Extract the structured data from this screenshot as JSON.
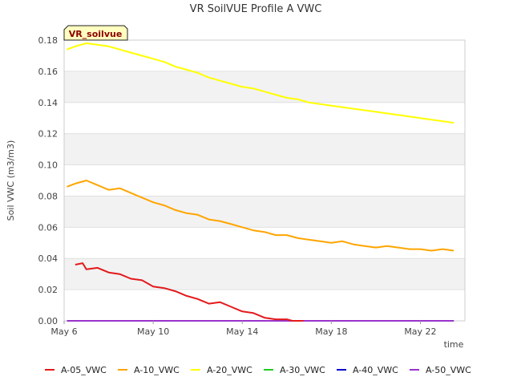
{
  "chart_data": {
    "type": "line",
    "title": "VR SoilVUE Profile A VWC",
    "badge": "VR_soilvue",
    "xlabel": "time",
    "ylabel": "Soil VWC (m3/m3)",
    "x_ticks": [
      "May 6",
      "May 10",
      "May 14",
      "May 18",
      "May 22"
    ],
    "y_ticks": [
      "0.00",
      "0.02",
      "0.04",
      "0.06",
      "0.08",
      "0.10",
      "0.12",
      "0.14",
      "0.16",
      "0.18"
    ],
    "xlim": [
      "2024-05-06",
      "2024-05-24"
    ],
    "ylim": [
      0,
      0.18
    ],
    "grid": true,
    "legend_position": "bottom",
    "series": [
      {
        "name": "A-05_VWC",
        "color": "#e31a1c",
        "x": [
          "2024-05-06T12:00",
          "2024-05-06T20:00",
          "2024-05-07T00:00",
          "2024-05-07T12:00",
          "2024-05-08T00:00",
          "2024-05-08T12:00",
          "2024-05-09T00:00",
          "2024-05-09T12:00",
          "2024-05-10T00:00",
          "2024-05-10T12:00",
          "2024-05-11T00:00",
          "2024-05-11T12:00",
          "2024-05-12T00:00",
          "2024-05-12T12:00",
          "2024-05-13T00:00",
          "2024-05-13T12:00",
          "2024-05-14T00:00",
          "2024-05-14T12:00",
          "2024-05-15T00:00",
          "2024-05-15T12:00",
          "2024-05-16T00:00",
          "2024-05-16T06:00",
          "2024-05-16T18:00"
        ],
        "y": [
          0.036,
          0.037,
          0.033,
          0.034,
          0.031,
          0.03,
          0.027,
          0.026,
          0.022,
          0.021,
          0.019,
          0.016,
          0.014,
          0.011,
          0.012,
          0.009,
          0.006,
          0.005,
          0.002,
          0.001,
          0.001,
          0.0,
          0.0
        ]
      },
      {
        "name": "A-10_VWC",
        "color": "#ffa500",
        "x": [
          "2024-05-06T03:00",
          "2024-05-06T12:00",
          "2024-05-07T00:00",
          "2024-05-07T12:00",
          "2024-05-08T00:00",
          "2024-05-08T12:00",
          "2024-05-09T00:00",
          "2024-05-09T12:00",
          "2024-05-10T00:00",
          "2024-05-10T12:00",
          "2024-05-11T00:00",
          "2024-05-11T12:00",
          "2024-05-12T00:00",
          "2024-05-12T12:00",
          "2024-05-13T00:00",
          "2024-05-13T12:00",
          "2024-05-14T00:00",
          "2024-05-14T12:00",
          "2024-05-15T00:00",
          "2024-05-15T12:00",
          "2024-05-16T00:00",
          "2024-05-16T12:00",
          "2024-05-17T00:00",
          "2024-05-17T12:00",
          "2024-05-18T00:00",
          "2024-05-18T12:00",
          "2024-05-19T00:00",
          "2024-05-19T12:00",
          "2024-05-20T00:00",
          "2024-05-20T12:00",
          "2024-05-21T00:00",
          "2024-05-21T12:00",
          "2024-05-22T00:00",
          "2024-05-22T12:00",
          "2024-05-23T00:00",
          "2024-05-23T12:00"
        ],
        "y": [
          0.086,
          0.088,
          0.09,
          0.087,
          0.084,
          0.085,
          0.082,
          0.079,
          0.076,
          0.074,
          0.071,
          0.069,
          0.068,
          0.065,
          0.064,
          0.062,
          0.06,
          0.058,
          0.057,
          0.055,
          0.055,
          0.053,
          0.052,
          0.051,
          0.05,
          0.051,
          0.049,
          0.048,
          0.047,
          0.048,
          0.047,
          0.046,
          0.046,
          0.045,
          0.046,
          0.045
        ]
      },
      {
        "name": "A-20_VWC",
        "color": "#ffff00",
        "x": [
          "2024-05-06T03:00",
          "2024-05-06T12:00",
          "2024-05-07T00:00",
          "2024-05-07T12:00",
          "2024-05-08T00:00",
          "2024-05-08T12:00",
          "2024-05-09T00:00",
          "2024-05-09T12:00",
          "2024-05-10T00:00",
          "2024-05-10T12:00",
          "2024-05-11T00:00",
          "2024-05-11T12:00",
          "2024-05-12T00:00",
          "2024-05-12T12:00",
          "2024-05-13T00:00",
          "2024-05-13T12:00",
          "2024-05-14T00:00",
          "2024-05-14T12:00",
          "2024-05-15T00:00",
          "2024-05-15T12:00",
          "2024-05-16T00:00",
          "2024-05-16T12:00",
          "2024-05-17T00:00",
          "2024-05-17T12:00",
          "2024-05-18T00:00",
          "2024-05-18T12:00",
          "2024-05-19T00:00",
          "2024-05-19T12:00",
          "2024-05-20T00:00",
          "2024-05-20T12:00",
          "2024-05-21T00:00",
          "2024-05-21T12:00",
          "2024-05-22T00:00",
          "2024-05-22T12:00",
          "2024-05-23T00:00",
          "2024-05-23T12:00"
        ],
        "y": [
          0.174,
          0.176,
          0.178,
          0.177,
          0.176,
          0.174,
          0.172,
          0.17,
          0.168,
          0.166,
          0.163,
          0.161,
          0.159,
          0.156,
          0.154,
          0.152,
          0.15,
          0.149,
          0.147,
          0.145,
          0.143,
          0.142,
          0.14,
          0.139,
          0.138,
          0.137,
          0.136,
          0.135,
          0.134,
          0.133,
          0.132,
          0.131,
          0.13,
          0.129,
          0.128,
          0.127
        ]
      },
      {
        "name": "A-30_VWC",
        "color": "#22cc22",
        "x": [
          "2024-05-06T03:00",
          "2024-05-23T12:00"
        ],
        "y": [
          0.0,
          0.0
        ]
      },
      {
        "name": "A-40_VWC",
        "color": "#0000cc",
        "x": [
          "2024-05-06T03:00",
          "2024-05-23T12:00"
        ],
        "y": [
          0.0,
          0.0
        ]
      },
      {
        "name": "A-50_VWC",
        "color": "#9933cc",
        "x": [
          "2024-05-06T03:00",
          "2024-05-23T12:00"
        ],
        "y": [
          0.0,
          0.0
        ]
      }
    ]
  }
}
